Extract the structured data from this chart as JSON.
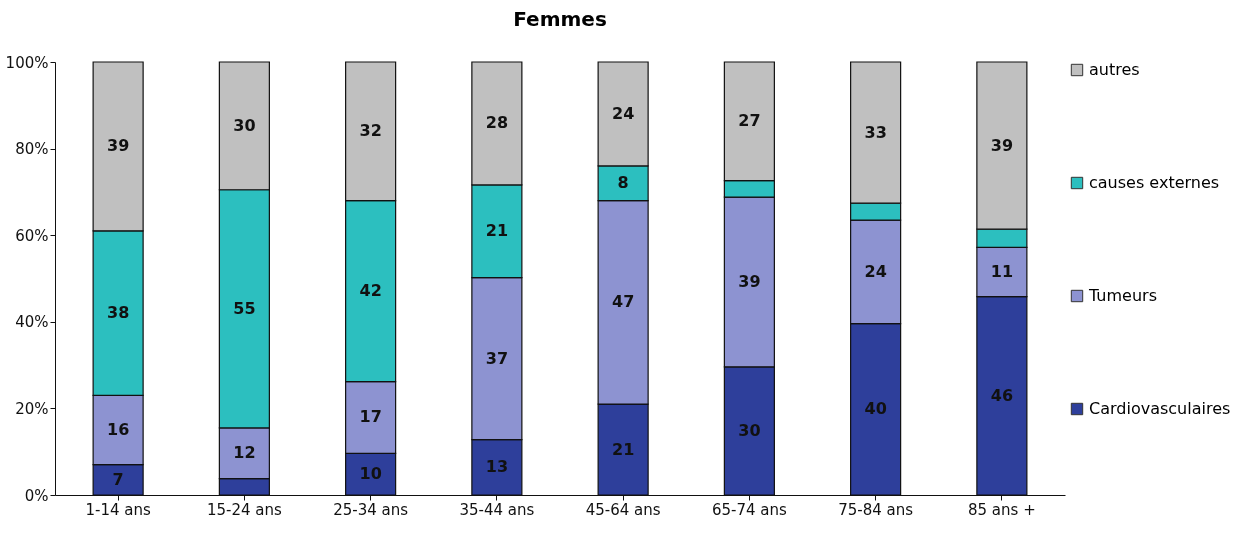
{
  "chart_data": {
    "type": "bar",
    "title": "Femmes",
    "stacked": true,
    "legend": "right",
    "grid": false,
    "categories": [
      "1-14 ans",
      "15-24 ans",
      "25-34 ans",
      "35-44 ans",
      "45-64 ans",
      "65-74 ans",
      "75-84 ans",
      "85 ans +"
    ],
    "ylim": [
      0,
      100
    ],
    "yticks": [
      {
        "value": 0,
        "label": "0%"
      },
      {
        "value": 20,
        "label": "20%"
      },
      {
        "value": 40,
        "label": "40%"
      },
      {
        "value": 60,
        "label": "60%"
      },
      {
        "value": 80,
        "label": "80%"
      },
      {
        "value": 100,
        "label": "100%"
      }
    ],
    "series": [
      {
        "name": "Cardiovasculaires",
        "color": "#2e3f9b",
        "values": [
          7,
          3.8,
          9.6,
          12.8,
          21,
          29.6,
          39.6,
          45.8
        ],
        "value_labels": [
          "7",
          null,
          "10",
          "13",
          "21",
          "30",
          "40",
          "46"
        ]
      },
      {
        "name": "Tumeurs",
        "color": "#8d93d1",
        "values": [
          16,
          11.7,
          16.6,
          37.4,
          47,
          39.2,
          23.9,
          11.4
        ],
        "value_labels": [
          "16",
          "12",
          "17",
          "37",
          "47",
          "39",
          "24",
          "11"
        ]
      },
      {
        "name": "causes externes",
        "color": "#2cbfbf",
        "values": [
          38,
          55,
          41.8,
          21.4,
          8,
          3.8,
          3.9,
          4.2
        ],
        "value_labels": [
          "38",
          "55",
          "42",
          "21",
          "8",
          null,
          null,
          null
        ]
      },
      {
        "name": "autres",
        "color": "#c0c0c0",
        "values": [
          39,
          29.5,
          32,
          28.4,
          24,
          27.4,
          32.6,
          38.6
        ],
        "value_labels": [
          "39",
          "30",
          "32",
          "28",
          "24",
          "27",
          "33",
          "39"
        ]
      }
    ]
  }
}
